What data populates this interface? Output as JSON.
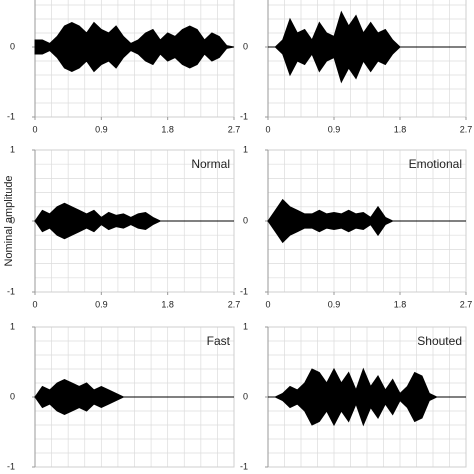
{
  "chart_data": [
    {
      "type": "area",
      "x": [
        0,
        0.1,
        0.2,
        0.3,
        0.4,
        0.5,
        0.6,
        0.7,
        0.8,
        0.9,
        1.0,
        1.1,
        1.2,
        1.3,
        1.4,
        1.5,
        1.6,
        1.7,
        1.8,
        1.9,
        2.0,
        2.1,
        2.2,
        2.3,
        2.4,
        2.5,
        2.6,
        2.7
      ],
      "series": [
        {
          "color": "#000000",
          "values": [
            0.1,
            0.1,
            0.05,
            0.15,
            0.3,
            0.35,
            0.3,
            0.2,
            0.35,
            0.25,
            0.2,
            0.3,
            0.15,
            0.05,
            0.1,
            0.2,
            0.25,
            0.1,
            0.2,
            0.15,
            0.25,
            0.3,
            0.25,
            0.1,
            0.2,
            0.15,
            0.02,
            0
          ]
        }
      ],
      "xlim": [
        0,
        2.7
      ],
      "ylim": [
        -1,
        1
      ],
      "xticks": [
        0,
        0.9,
        1.8,
        2.7
      ],
      "yticks": [
        -1,
        0
      ],
      "grid": true
    },
    {
      "type": "area",
      "x": [
        0,
        0.1,
        0.2,
        0.3,
        0.4,
        0.5,
        0.6,
        0.7,
        0.8,
        0.9,
        1.0,
        1.1,
        1.2,
        1.3,
        1.4,
        1.5,
        1.6,
        1.7,
        1.8,
        1.9,
        2.0,
        2.1,
        2.2,
        2.3,
        2.4,
        2.5,
        2.6,
        2.7
      ],
      "series": [
        {
          "color": "#000000",
          "values": [
            0,
            0,
            0.1,
            0.4,
            0.2,
            0.25,
            0.1,
            0.35,
            0.2,
            0.15,
            0.5,
            0.3,
            0.45,
            0.2,
            0.35,
            0.2,
            0.25,
            0.1,
            0,
            0,
            0,
            0,
            0,
            0,
            0,
            0,
            0,
            0
          ]
        }
      ],
      "xlim": [
        0,
        2.7
      ],
      "ylim": [
        -1,
        1
      ],
      "xticks": [
        0,
        0.9,
        1.8,
        2.7
      ],
      "yticks": [
        -1,
        0
      ],
      "grid": true
    },
    {
      "type": "area",
      "title": "Normal",
      "ylabel": "Nominal amplitude",
      "x": [
        0,
        0.1,
        0.2,
        0.3,
        0.4,
        0.5,
        0.6,
        0.7,
        0.8,
        0.9,
        1.0,
        1.1,
        1.2,
        1.3,
        1.4,
        1.5,
        1.6,
        1.7,
        1.8,
        1.9,
        2.0,
        2.1,
        2.2,
        2.3,
        2.4,
        2.5,
        2.6,
        2.7
      ],
      "series": [
        {
          "color": "#000000",
          "values": [
            0,
            0.15,
            0.1,
            0.2,
            0.25,
            0.2,
            0.15,
            0.1,
            0.15,
            0.05,
            0.12,
            0.08,
            0.1,
            0.05,
            0.1,
            0.12,
            0.05,
            0,
            0,
            0,
            0,
            0,
            0,
            0,
            0,
            0,
            0,
            0
          ]
        }
      ],
      "xlim": [
        0,
        2.7
      ],
      "ylim": [
        -1,
        1
      ],
      "xticks": [
        0,
        0.9,
        1.8,
        2.7
      ],
      "yticks": [
        -1,
        0,
        1
      ],
      "grid": true
    },
    {
      "type": "area",
      "title": "Emotional",
      "x": [
        0,
        0.1,
        0.2,
        0.3,
        0.4,
        0.5,
        0.6,
        0.7,
        0.8,
        0.9,
        1.0,
        1.1,
        1.2,
        1.3,
        1.4,
        1.5,
        1.6,
        1.7,
        1.8,
        1.9,
        2.0,
        2.1,
        2.2,
        2.3,
        2.4,
        2.5,
        2.6,
        2.7
      ],
      "series": [
        {
          "color": "#000000",
          "values": [
            0,
            0.15,
            0.3,
            0.2,
            0.15,
            0.1,
            0.1,
            0.15,
            0.1,
            0.12,
            0.1,
            0.15,
            0.1,
            0.12,
            0.05,
            0.2,
            0.05,
            0,
            0,
            0,
            0,
            0,
            0,
            0,
            0,
            0,
            0,
            0
          ]
        }
      ],
      "xlim": [
        0,
        2.7
      ],
      "ylim": [
        -1,
        1
      ],
      "xticks": [
        0,
        0.9,
        1.8,
        2.7
      ],
      "yticks": [
        -1,
        0,
        1
      ],
      "grid": true
    },
    {
      "type": "area",
      "title": "Fast",
      "x": [
        0,
        0.1,
        0.2,
        0.3,
        0.4,
        0.5,
        0.6,
        0.7,
        0.8,
        0.9,
        1.0,
        1.1,
        1.2,
        1.3,
        1.4,
        1.5,
        1.6,
        1.7,
        1.8,
        1.9,
        2.0,
        2.1,
        2.2,
        2.3,
        2.4,
        2.5,
        2.6,
        2.7
      ],
      "series": [
        {
          "color": "#000000",
          "values": [
            0,
            0.15,
            0.1,
            0.2,
            0.25,
            0.2,
            0.15,
            0.2,
            0.1,
            0.15,
            0.1,
            0.05,
            0,
            0,
            0,
            0,
            0,
            0,
            0,
            0,
            0,
            0,
            0,
            0,
            0,
            0,
            0,
            0
          ]
        }
      ],
      "xlim": [
        0,
        2.7
      ],
      "ylim": [
        -1,
        1
      ],
      "yticks": [
        -1,
        0,
        1
      ],
      "grid": true
    },
    {
      "type": "area",
      "title": "Shouted",
      "x": [
        0,
        0.1,
        0.2,
        0.3,
        0.4,
        0.5,
        0.6,
        0.7,
        0.8,
        0.9,
        1.0,
        1.1,
        1.2,
        1.3,
        1.4,
        1.5,
        1.6,
        1.7,
        1.8,
        1.9,
        2.0,
        2.1,
        2.2,
        2.3,
        2.4,
        2.5,
        2.6,
        2.7
      ],
      "series": [
        {
          "color": "#000000",
          "values": [
            0,
            0,
            0.05,
            0.15,
            0.1,
            0.2,
            0.4,
            0.35,
            0.2,
            0.4,
            0.2,
            0.35,
            0.1,
            0.4,
            0.15,
            0.3,
            0.1,
            0.25,
            0.05,
            0.15,
            0.35,
            0.3,
            0.05,
            0,
            0,
            0,
            0,
            0
          ]
        }
      ],
      "xlim": [
        0,
        2.7
      ],
      "ylim": [
        -1,
        1
      ],
      "yticks": [
        -1,
        0,
        1
      ],
      "grid": true
    }
  ]
}
